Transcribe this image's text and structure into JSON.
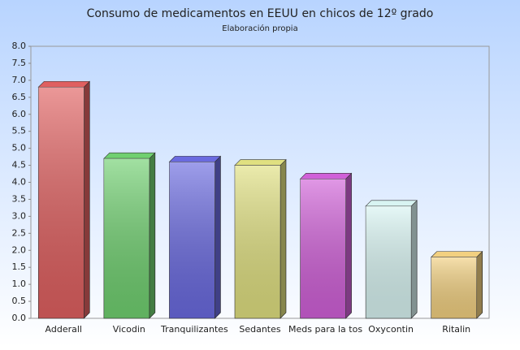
{
  "chart_data": {
    "type": "bar3d",
    "title": "Consumo de medicamentos en EEUU en chicos de 12º grado",
    "subtitle": "Elaboración propia",
    "categories": [
      "Adderall",
      "Vicodin",
      "Tranquilizantes",
      "Sedantes",
      "Meds para la tos",
      "Oxycontin",
      "Ritalin"
    ],
    "values": [
      6.8,
      4.7,
      4.6,
      4.5,
      4.1,
      3.3,
      1.8
    ],
    "colors": [
      "#e06060",
      "#70d070",
      "#6a6ae0",
      "#e0e080",
      "#d060d8",
      "#d8f4f2",
      "#f2d080"
    ],
    "ylim": [
      0,
      8
    ],
    "yticks": [
      {
        "value": 0,
        "label": "0.0"
      },
      {
        "value": 0.5,
        "label": "0.5"
      },
      {
        "value": 1,
        "label": "1.0"
      },
      {
        "value": 1.5,
        "label": "1.5"
      },
      {
        "value": 2,
        "label": "2.0"
      },
      {
        "value": 2.5,
        "label": "2.5"
      },
      {
        "value": 3,
        "label": "3.0"
      },
      {
        "value": 3.5,
        "label": "3.5"
      },
      {
        "value": 4,
        "label": "4.0"
      },
      {
        "value": 4.5,
        "label": "4.5"
      },
      {
        "value": 5,
        "label": "5.0"
      },
      {
        "value": 5.5,
        "label": "5.5"
      },
      {
        "value": 6,
        "label": "6.0"
      },
      {
        "value": 6.5,
        "label": "6.5"
      },
      {
        "value": 7,
        "label": "7.0"
      },
      {
        "value": 7.5,
        "label": "7.5"
      },
      {
        "value": 8,
        "label": "8.0"
      }
    ]
  }
}
